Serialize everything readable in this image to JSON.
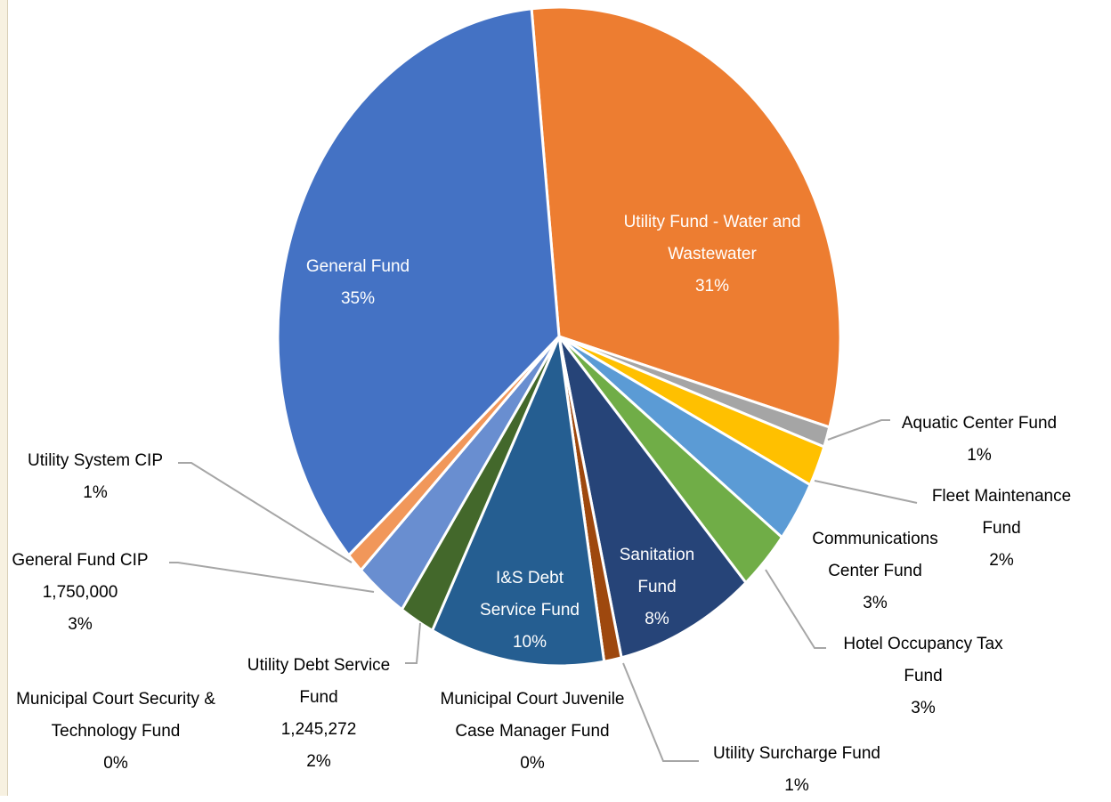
{
  "chart_data": {
    "type": "pie",
    "categories": [
      "Utility Fund - Water and Wastewater",
      "Aquatic Center Fund",
      "Fleet Maintenance Fund",
      "Communications Center Fund",
      "Hotel Occupancy Tax Fund",
      "Sanitation Fund",
      "Utility Surcharge Fund",
      "Municipal Court Juvenile Case Manager Fund",
      "I&S Debt Service Fund",
      "Utility Debt Service Fund",
      "General Fund CIP",
      "Municipal Court Security & Technology Fund",
      "Utility System CIP",
      "General Fund"
    ],
    "values": [
      31,
      1,
      2,
      3,
      3,
      8,
      1,
      0,
      10,
      2,
      3,
      0,
      1,
      35
    ],
    "value_labels": [
      "31%",
      "1%",
      "2%",
      "3%",
      "3%",
      "8%",
      "1%",
      "0%",
      "10%",
      "2%",
      "3%",
      "0%",
      "1%",
      "35%"
    ],
    "amount_labels": [
      null,
      null,
      null,
      null,
      null,
      null,
      null,
      null,
      null,
      "1,245,272",
      "1,750,000",
      null,
      null,
      null
    ],
    "colors": [
      "#ed7d31",
      "#a5a5a5",
      "#ffc000",
      "#5b9bd5",
      "#70ad47",
      "#264478",
      "#9e480e",
      "#636363",
      "#255e91",
      "#43682b",
      "#698ed0",
      "#997300",
      "#f1975a",
      "#4472c4"
    ]
  }
}
